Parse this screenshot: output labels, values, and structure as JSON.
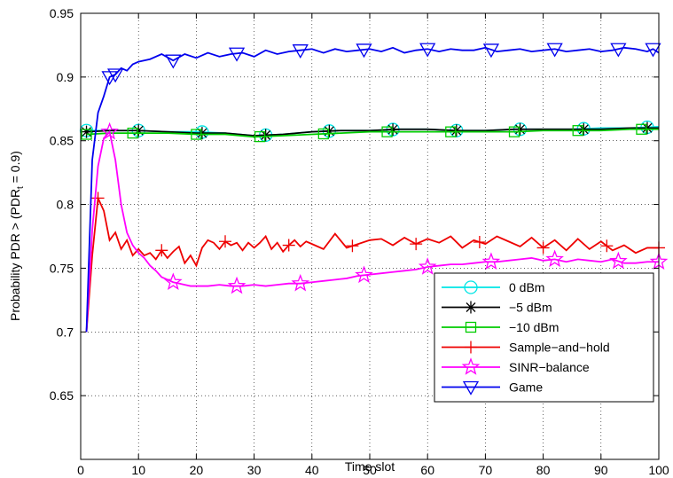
{
  "chart_data": {
    "type": "line",
    "title": "",
    "xlabel": "Time slot",
    "ylabel_parts": {
      "prefix": "Probability PDR > (PDR",
      "subscript": "t",
      "suffix": " = 0.9)"
    },
    "xlim": [
      0,
      100
    ],
    "ylim": [
      0.6,
      0.95
    ],
    "xticks": [
      0,
      10,
      20,
      30,
      40,
      50,
      60,
      70,
      80,
      90,
      100
    ],
    "yticks": [
      0.6,
      0.65,
      0.7,
      0.75,
      0.8,
      0.85,
      0.9,
      0.95
    ],
    "ytick_labels": [
      "",
      "0.65",
      "0.7",
      "0.75",
      "0.8",
      "0.85",
      "0.9",
      "0.95"
    ],
    "grid": true,
    "legend_position": "bottom-right",
    "series": [
      {
        "name": "0 dBm",
        "color": "#00e5e5",
        "marker": "circle",
        "marker_x": [
          1,
          10,
          21,
          32,
          43,
          54,
          65,
          76,
          87,
          98
        ],
        "x": [
          1,
          5,
          10,
          15,
          20,
          25,
          30,
          35,
          40,
          45,
          50,
          55,
          60,
          65,
          70,
          75,
          80,
          85,
          90,
          95,
          100
        ],
        "y": [
          0.858,
          0.858,
          0.858,
          0.857,
          0.857,
          0.856,
          0.854,
          0.855,
          0.857,
          0.858,
          0.858,
          0.859,
          0.859,
          0.858,
          0.858,
          0.859,
          0.859,
          0.859,
          0.86,
          0.86,
          0.861
        ]
      },
      {
        "name": "−5 dBm",
        "color": "#000000",
        "marker": "asterisk",
        "marker_x": [
          1,
          10,
          21,
          32,
          43,
          54,
          65,
          76,
          87,
          98
        ],
        "x": [
          1,
          5,
          10,
          15,
          20,
          25,
          30,
          35,
          40,
          45,
          50,
          55,
          60,
          65,
          70,
          75,
          80,
          85,
          90,
          95,
          100
        ],
        "y": [
          0.857,
          0.858,
          0.858,
          0.857,
          0.856,
          0.856,
          0.854,
          0.855,
          0.857,
          0.858,
          0.858,
          0.859,
          0.859,
          0.858,
          0.858,
          0.859,
          0.859,
          0.859,
          0.859,
          0.86,
          0.86
        ]
      },
      {
        "name": "−10 dBm",
        "color": "#00cc00",
        "marker": "square",
        "marker_x": [
          1,
          9,
          20,
          31,
          42,
          53,
          64,
          75,
          86,
          97
        ],
        "x": [
          1,
          5,
          10,
          15,
          20,
          25,
          30,
          35,
          40,
          45,
          50,
          55,
          60,
          65,
          70,
          75,
          80,
          85,
          90,
          95,
          100
        ],
        "y": [
          0.855,
          0.856,
          0.856,
          0.856,
          0.855,
          0.855,
          0.853,
          0.854,
          0.855,
          0.856,
          0.857,
          0.857,
          0.857,
          0.857,
          0.857,
          0.857,
          0.858,
          0.858,
          0.858,
          0.859,
          0.859
        ]
      },
      {
        "name": "Sample−and−hold",
        "color": "#ee0000",
        "marker": "plus",
        "marker_x": [
          3,
          14,
          25,
          36,
          47,
          58,
          69,
          80,
          91,
          100
        ],
        "x": [
          1,
          2,
          3,
          4,
          5,
          6,
          7,
          8,
          9,
          10,
          11,
          12,
          13,
          14,
          15,
          16,
          17,
          18,
          19,
          20,
          21,
          22,
          23,
          24,
          25,
          26,
          27,
          28,
          29,
          30,
          31,
          32,
          33,
          34,
          35,
          36,
          37,
          38,
          39,
          40,
          42,
          44,
          46,
          48,
          50,
          52,
          54,
          56,
          58,
          60,
          62,
          64,
          66,
          68,
          70,
          72,
          74,
          76,
          78,
          80,
          82,
          84,
          86,
          88,
          90,
          92,
          94,
          96,
          98,
          100
        ],
        "y": [
          0.7,
          0.76,
          0.805,
          0.795,
          0.772,
          0.778,
          0.765,
          0.772,
          0.76,
          0.765,
          0.76,
          0.762,
          0.757,
          0.764,
          0.758,
          0.763,
          0.767,
          0.754,
          0.76,
          0.752,
          0.766,
          0.772,
          0.77,
          0.765,
          0.771,
          0.768,
          0.77,
          0.764,
          0.77,
          0.766,
          0.77,
          0.775,
          0.765,
          0.77,
          0.763,
          0.768,
          0.772,
          0.767,
          0.771,
          0.769,
          0.765,
          0.777,
          0.766,
          0.769,
          0.772,
          0.773,
          0.768,
          0.774,
          0.769,
          0.773,
          0.77,
          0.775,
          0.766,
          0.772,
          0.769,
          0.775,
          0.771,
          0.767,
          0.774,
          0.766,
          0.772,
          0.764,
          0.773,
          0.765,
          0.771,
          0.764,
          0.768,
          0.762,
          0.766,
          0.766
        ]
      },
      {
        "name": "SINR−balance",
        "color": "#ff00ff",
        "marker": "pentagram",
        "marker_x": [
          5,
          16,
          27,
          38,
          49,
          60,
          71,
          82,
          93,
          100
        ],
        "x": [
          1,
          2,
          3,
          4,
          5,
          6,
          7,
          8,
          9,
          10,
          11,
          12,
          13,
          14,
          15,
          16,
          17,
          18,
          19,
          20,
          22,
          24,
          26,
          28,
          30,
          32,
          34,
          36,
          38,
          40,
          42,
          44,
          46,
          48,
          50,
          52,
          54,
          56,
          58,
          60,
          62,
          64,
          66,
          68,
          70,
          72,
          74,
          76,
          78,
          80,
          82,
          84,
          86,
          88,
          90,
          92,
          94,
          96,
          98,
          100
        ],
        "y": [
          0.7,
          0.78,
          0.83,
          0.852,
          0.857,
          0.835,
          0.8,
          0.778,
          0.768,
          0.762,
          0.758,
          0.752,
          0.748,
          0.743,
          0.741,
          0.739,
          0.738,
          0.737,
          0.736,
          0.736,
          0.736,
          0.737,
          0.736,
          0.736,
          0.737,
          0.736,
          0.737,
          0.738,
          0.738,
          0.739,
          0.74,
          0.741,
          0.742,
          0.744,
          0.745,
          0.746,
          0.747,
          0.748,
          0.749,
          0.751,
          0.752,
          0.753,
          0.753,
          0.754,
          0.755,
          0.755,
          0.756,
          0.757,
          0.758,
          0.756,
          0.757,
          0.755,
          0.757,
          0.756,
          0.755,
          0.757,
          0.754,
          0.754,
          0.755,
          0.755
        ]
      },
      {
        "name": "Game",
        "color": "#0000ee",
        "marker": "triangle-down",
        "marker_x": [
          5,
          6,
          16,
          27,
          38,
          49,
          60,
          71,
          82,
          93,
          99
        ],
        "x": [
          1,
          2,
          3,
          4,
          5,
          6,
          7,
          8,
          9,
          10,
          12,
          14,
          16,
          18,
          20,
          22,
          24,
          26,
          28,
          30,
          32,
          34,
          36,
          38,
          40,
          42,
          44,
          46,
          48,
          50,
          52,
          54,
          56,
          58,
          60,
          62,
          64,
          66,
          68,
          70,
          72,
          74,
          76,
          78,
          80,
          82,
          84,
          86,
          88,
          90,
          92,
          94,
          96,
          98,
          99,
          100
        ],
        "y": [
          0.7,
          0.835,
          0.872,
          0.885,
          0.9,
          0.902,
          0.907,
          0.905,
          0.91,
          0.912,
          0.914,
          0.918,
          0.913,
          0.918,
          0.915,
          0.919,
          0.916,
          0.918,
          0.919,
          0.916,
          0.921,
          0.918,
          0.92,
          0.921,
          0.922,
          0.919,
          0.922,
          0.92,
          0.921,
          0.922,
          0.92,
          0.923,
          0.919,
          0.921,
          0.922,
          0.92,
          0.922,
          0.921,
          0.921,
          0.923,
          0.92,
          0.921,
          0.922,
          0.92,
          0.921,
          0.922,
          0.92,
          0.921,
          0.922,
          0.92,
          0.921,
          0.923,
          0.922,
          0.92,
          0.922,
          0.919
        ]
      }
    ]
  }
}
